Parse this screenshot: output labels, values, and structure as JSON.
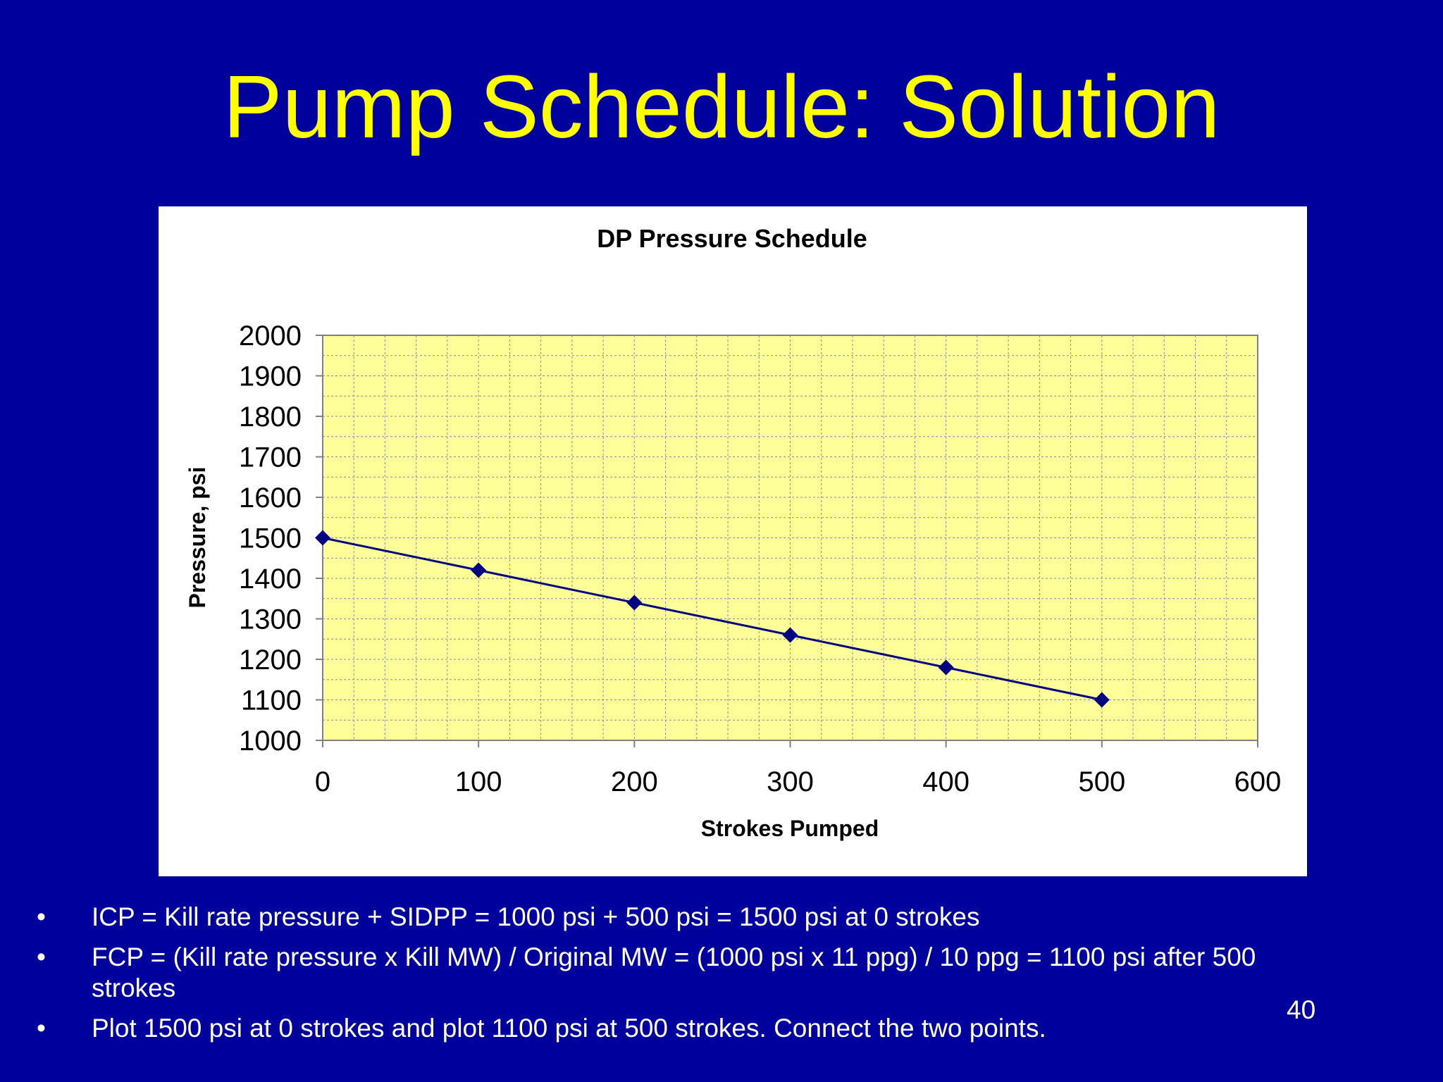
{
  "slide": {
    "title": "Pump Schedule: Solution",
    "page_number": "40",
    "bullets": [
      "ICP = Kill rate pressure + SIDPP = 1000 psi + 500 psi = 1500 psi at 0 strokes",
      "FCP = (Kill rate pressure x Kill MW) / Original MW = (1000 psi x 11 ppg) / 10 ppg = 1100 psi after 500 strokes",
      "Plot 1500 psi at 0 strokes and plot 1100 psi at 500 strokes. Connect the two points."
    ],
    "bullet_glyph": "•"
  },
  "colors": {
    "background": "#00009c",
    "title": "#ffff00",
    "plot_area": "#ffff99",
    "series": "#000080"
  },
  "chart_data": {
    "type": "line",
    "title": "DP Pressure Schedule",
    "xlabel": "Strokes Pumped",
    "ylabel": "Pressure, psi",
    "xlim": [
      0,
      600
    ],
    "ylim": [
      1000,
      2000
    ],
    "x_ticks": [
      0,
      100,
      200,
      300,
      400,
      500,
      600
    ],
    "y_ticks": [
      1000,
      1100,
      1200,
      1300,
      1400,
      1500,
      1600,
      1700,
      1800,
      1900,
      2000
    ],
    "grid": true,
    "marker": "diamond",
    "series": [
      {
        "x": [
          0,
          100,
          200,
          300,
          400,
          500
        ],
        "y": [
          1500,
          1420,
          1340,
          1260,
          1180,
          1100
        ]
      }
    ]
  }
}
